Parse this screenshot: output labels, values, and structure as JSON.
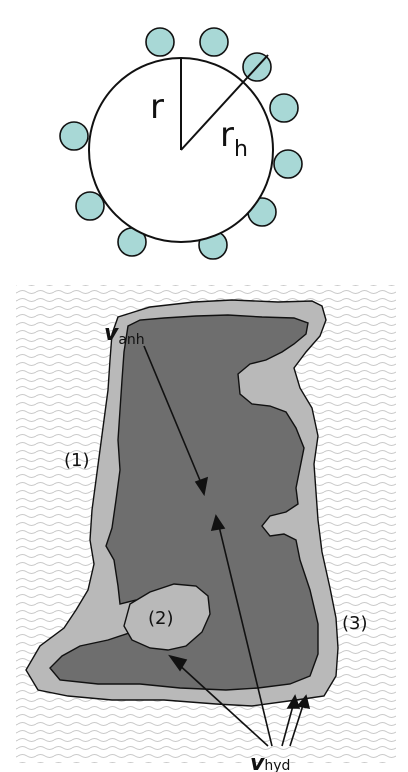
{
  "top_diagram": {
    "radius_label": "r",
    "hydrated_radius_label_main": "r",
    "hydrated_radius_label_sub": "h",
    "bead_color": "#a8d8d6"
  },
  "bottom_diagram": {
    "region_labels": [
      "(1)",
      "(2)",
      "(3)"
    ],
    "anhydrous_label_main": "v",
    "anhydrous_label_sub": "anh",
    "hydrated_label_main": "v",
    "hydrated_label_sub": "hyd",
    "colors": {
      "water_lines": "#c9c9c9",
      "hydration_shell": "#b9b9b9",
      "protein_core": "#6e6e6e"
    }
  }
}
